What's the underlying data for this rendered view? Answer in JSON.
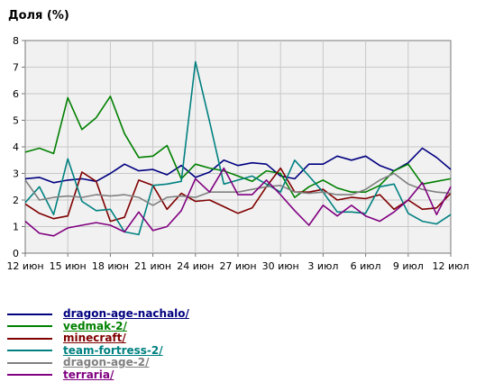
{
  "chart_data": {
    "type": "line",
    "title": "Доля (%)",
    "xlabel": "",
    "ylabel": "",
    "ylim": [
      0,
      8
    ],
    "yticks": [
      0,
      1,
      2,
      3,
      4,
      5,
      6,
      7,
      8
    ],
    "grid": true,
    "legend_position": "bottom-left",
    "x_tick_labels": [
      "12 июн",
      "15 июн",
      "18 июн",
      "21 июн",
      "24 июн",
      "27 июн",
      "30 июн",
      "3 июл",
      "6 июл",
      "9 июл",
      "12 июл"
    ],
    "x_tick_days": [
      0,
      3,
      6,
      9,
      12,
      15,
      18,
      21,
      24,
      27,
      30
    ],
    "series": [
      {
        "name": "dragon-age-nachalo/",
        "color": "#000080",
        "values": [
          2.8,
          2.85,
          2.65,
          2.75,
          2.8,
          2.7,
          3.0,
          3.35,
          3.1,
          3.15,
          2.95,
          3.3,
          2.85,
          3.05,
          3.5,
          3.3,
          3.4,
          3.35,
          2.9,
          2.8,
          3.35,
          3.35,
          3.65,
          3.5,
          3.65,
          3.3,
          3.1,
          3.4,
          3.95,
          3.6,
          3.15
        ]
      },
      {
        "name": "vedmak-2/",
        "color": "#008000",
        "values": [
          3.8,
          3.95,
          3.75,
          5.85,
          4.65,
          5.1,
          5.9,
          4.5,
          3.6,
          3.65,
          4.05,
          2.8,
          3.35,
          3.2,
          3.1,
          2.9,
          2.7,
          3.1,
          3.0,
          2.1,
          2.5,
          2.75,
          2.45,
          2.3,
          2.3,
          2.55,
          3.1,
          3.35,
          2.6,
          2.7,
          2.8
        ]
      },
      {
        "name": "minecraft/",
        "color": "#800000",
        "values": [
          1.85,
          1.5,
          1.3,
          1.4,
          3.05,
          2.7,
          1.2,
          1.35,
          2.75,
          2.55,
          1.65,
          2.25,
          1.95,
          2.0,
          1.75,
          1.5,
          1.7,
          2.5,
          3.2,
          2.3,
          2.3,
          2.4,
          2.0,
          2.1,
          2.05,
          2.2,
          1.65,
          2.0,
          1.65,
          1.7,
          2.25
        ]
      },
      {
        "name": "team-fortress-2/",
        "color": "#008080",
        "values": [
          1.9,
          2.5,
          1.45,
          3.55,
          1.95,
          1.6,
          1.65,
          0.8,
          0.7,
          2.55,
          2.6,
          2.7,
          7.2,
          4.95,
          2.6,
          2.75,
          2.9,
          2.6,
          2.3,
          3.5,
          2.9,
          2.3,
          1.55,
          1.55,
          1.5,
          2.5,
          2.6,
          1.5,
          1.2,
          1.1,
          1.45
        ]
      },
      {
        "name": "dragon-age-2/",
        "color": "#808080",
        "values": [
          2.75,
          2.0,
          2.1,
          2.15,
          2.1,
          2.2,
          2.15,
          2.2,
          2.1,
          1.8,
          2.1,
          2.15,
          2.1,
          2.3,
          2.3,
          2.3,
          2.4,
          2.5,
          2.55,
          2.3,
          2.25,
          2.3,
          2.2,
          2.2,
          2.4,
          2.75,
          3.0,
          2.6,
          2.4,
          2.3,
          2.25
        ]
      },
      {
        "name": "terraria/",
        "color": "#800080",
        "values": [
          1.2,
          0.75,
          0.65,
          0.95,
          1.05,
          1.15,
          1.05,
          0.8,
          1.55,
          0.85,
          1.0,
          1.6,
          2.8,
          2.3,
          3.2,
          2.2,
          2.2,
          2.75,
          2.2,
          1.6,
          1.05,
          1.8,
          1.4,
          1.8,
          1.4,
          1.2,
          1.55,
          2.0,
          2.65,
          1.45,
          2.5
        ]
      }
    ]
  }
}
